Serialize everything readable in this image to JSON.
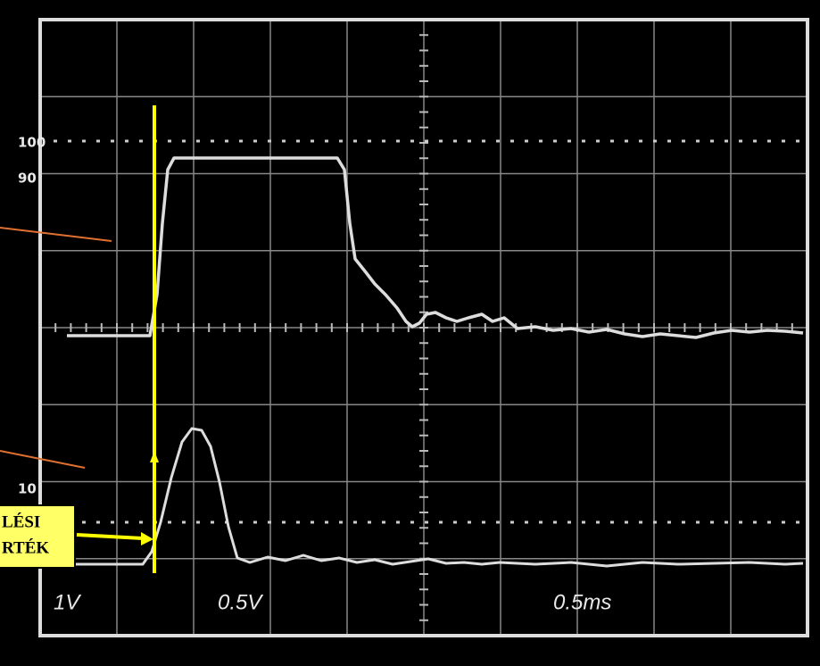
{
  "graticule_labels": {
    "level_100": "100",
    "level_90": "90",
    "level_10": "10"
  },
  "readouts": {
    "channel_1": "1V",
    "channel_2": "0.5V",
    "timebase": "0.5ms"
  },
  "callout": {
    "lines": [
      "LÉSI",
      "RTÉK"
    ]
  }
}
